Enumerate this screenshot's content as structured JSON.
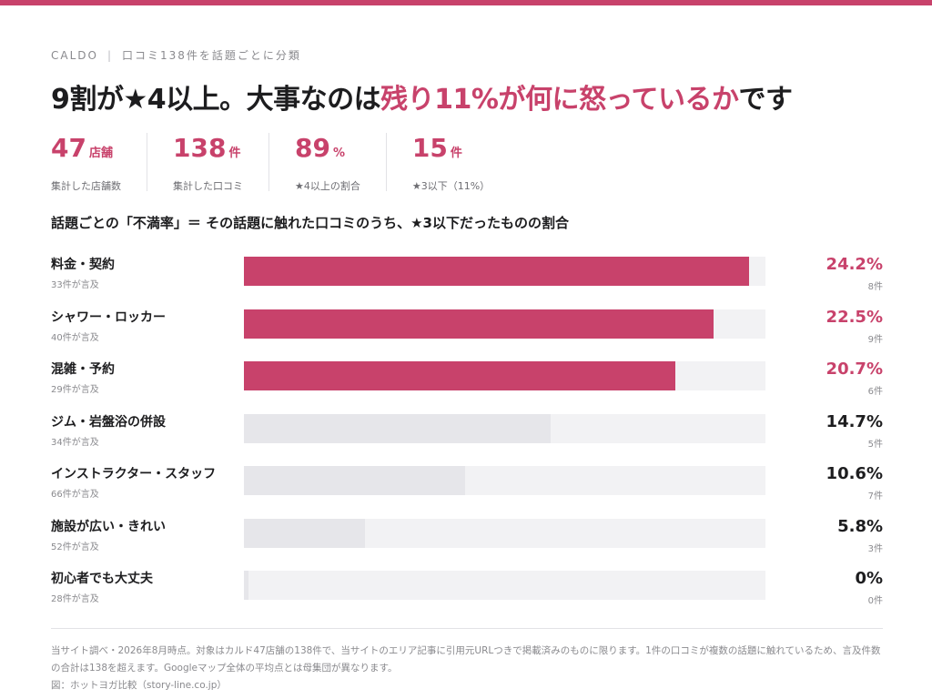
{
  "header": {
    "brand": "CALDO",
    "kicker": "口コミ138件を話題ごとに分類",
    "headline_main": "9割が★4以上。大事なのは",
    "headline_accent": "残り11%が何に怒っているか",
    "headline_tail": "です"
  },
  "stats": [
    {
      "value": "47",
      "unit": "店舗",
      "caption": "集計した店舗数"
    },
    {
      "value": "138",
      "unit": "件",
      "caption": "集計した口コミ"
    },
    {
      "value": "89",
      "unit": "%",
      "caption": "★4以上の割合"
    },
    {
      "value": "15",
      "unit": "件",
      "caption": "★3以下（11%）"
    }
  ],
  "colors": {
    "accent": "#c8426b",
    "muted_fill": "#e6e6ea",
    "track": "#f2f2f4"
  },
  "chart_data": {
    "type": "bar",
    "orientation": "horizontal",
    "title": "話題ごとの「不満率」＝ その話題に触れた口コミのうち、★3以下だったものの割合",
    "xlim": [
      0,
      25
    ],
    "grid": false,
    "categories": [
      "料金・契約",
      "シャワー・ロッカー",
      "混雑・予約",
      "ジム・岩盤浴の併設",
      "インストラクター・スタッフ",
      "施設が広い・きれい",
      "初心者でも大丈夫"
    ],
    "mentions": [
      "33件が言及",
      "40件が言及",
      "29件が言及",
      "34件が言及",
      "66件が言及",
      "52件が言及",
      "28件が言及"
    ],
    "values": [
      24.2,
      22.5,
      20.7,
      14.7,
      10.6,
      5.8,
      0
    ],
    "value_labels": [
      "24.2%",
      "22.5%",
      "20.7%",
      "14.7%",
      "10.6%",
      "5.8%",
      "0%"
    ],
    "counts": [
      "8件",
      "9件",
      "6件",
      "5件",
      "7件",
      "3件",
      "0件"
    ],
    "highlighted": [
      true,
      true,
      true,
      false,
      false,
      false,
      false
    ]
  },
  "footnote": {
    "line1": "当サイト調べ・2026年8月時点。対象はカルド47店舗の138件で、当サイトのエリア記事に引用元URLつきで掲載済みのものに限ります。1件の口コミが複数の話題に触れているため、言及件数の合計は138を超えます。Googleマップ全体の平均点とは母集団が異なります。",
    "line2": "図：ホットヨガ比較（story-line.co.jp）"
  }
}
